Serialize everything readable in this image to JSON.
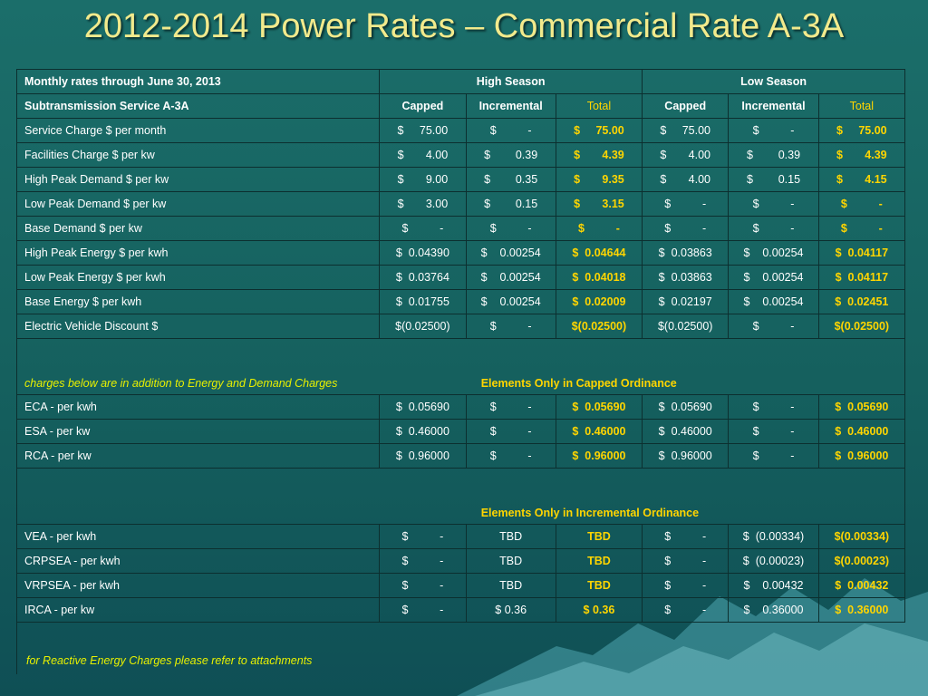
{
  "title": "2012-2014 Power Rates – Commercial Rate A-3A",
  "header": {
    "row1_label": "Monthly rates through June 30, 2013",
    "high_season": "High Season",
    "low_season": "Low Season",
    "row2_label": "Subtransmission Service A-3A",
    "capped": "Capped",
    "incremental": "Incremental",
    "total": "Total"
  },
  "rows": [
    {
      "label": "Service Charge $ per month",
      "values": [
        "$     75.00",
        "$          -",
        "$     75.00",
        "$     75.00",
        "$          -",
        "$     75.00"
      ]
    },
    {
      "label": "Facilities Charge $ per kw",
      "values": [
        "$       4.00",
        "$        0.39",
        "$       4.39",
        "$       4.00",
        "$        0.39",
        "$       4.39"
      ]
    },
    {
      "label": "High Peak Demand $ per kw",
      "values": [
        "$       9.00",
        "$        0.35",
        "$       9.35",
        "$       4.00",
        "$        0.15",
        "$       4.15"
      ]
    },
    {
      "label": "Low Peak Demand $ per kw",
      "values": [
        "$       3.00",
        "$        0.15",
        "$       3.15",
        "$          -",
        "$          -",
        "$          -"
      ]
    },
    {
      "label": "Base Demand $ per kw",
      "values": [
        "$          -",
        "$          -",
        "$          -",
        "$          -",
        "$          -",
        "$          -"
      ]
    },
    {
      "label": "High Peak Energy $ per kwh",
      "values": [
        "$  0.04390",
        "$    0.00254",
        "$  0.04644",
        "$  0.03863",
        "$    0.00254",
        "$  0.04117"
      ]
    },
    {
      "label": "Low Peak Energy $ per kwh",
      "values": [
        "$  0.03764",
        "$    0.00254",
        "$  0.04018",
        "$  0.03863",
        "$    0.00254",
        "$  0.04117"
      ]
    },
    {
      "label": "Base Energy $ per kwh",
      "values": [
        "$  0.01755",
        "$    0.00254",
        "$  0.02009",
        "$  0.02197",
        "$    0.00254",
        "$  0.02451"
      ]
    },
    {
      "label": "Electric Vehicle Discount $",
      "values": [
        "$(0.02500)",
        "$          -",
        "$(0.02500)",
        "$(0.02500)",
        "$          -",
        "$(0.02500)"
      ]
    }
  ],
  "section_capped": {
    "note": "charges below are in addition to Energy and Demand Charges",
    "title": "Elements Only in Capped Ordinance"
  },
  "rows_capped": [
    {
      "label": "ECA - per kwh",
      "values": [
        "$  0.05690",
        "$          -",
        "$  0.05690",
        "$  0.05690",
        "$          -",
        "$  0.05690"
      ]
    },
    {
      "label": "ESA - per kw",
      "values": [
        "$  0.46000",
        "$          -",
        "$  0.46000",
        "$  0.46000",
        "$          -",
        "$  0.46000"
      ]
    },
    {
      "label": "RCA - per kw",
      "values": [
        "$  0.96000",
        "$          -",
        "$  0.96000",
        "$  0.96000",
        "$          -",
        "$  0.96000"
      ]
    }
  ],
  "section_incremental": {
    "title": "Elements Only in Incremental Ordinance"
  },
  "rows_incremental": [
    {
      "label": "VEA - per kwh",
      "values": [
        "$          -",
        "TBD",
        "TBD",
        "$          -",
        "$  (0.00334)",
        "$(0.00334)"
      ]
    },
    {
      "label": "CRPSEA - per kwh",
      "values": [
        "$          -",
        "TBD",
        "TBD",
        "$          -",
        "$  (0.00023)",
        "$(0.00023)"
      ]
    },
    {
      "label": "VRPSEA - per kwh",
      "values": [
        "$          -",
        "TBD",
        "TBD",
        "$          -",
        "$    0.00432",
        "$  0.00432"
      ]
    },
    {
      "label": "IRCA - per kw",
      "values": [
        "$          -",
        "$ 0.36",
        "$ 0.36",
        "$          -",
        "$    0.36000",
        "$  0.36000"
      ]
    }
  ],
  "footer_note": "for Reactive Energy Charges please refer to attachments"
}
